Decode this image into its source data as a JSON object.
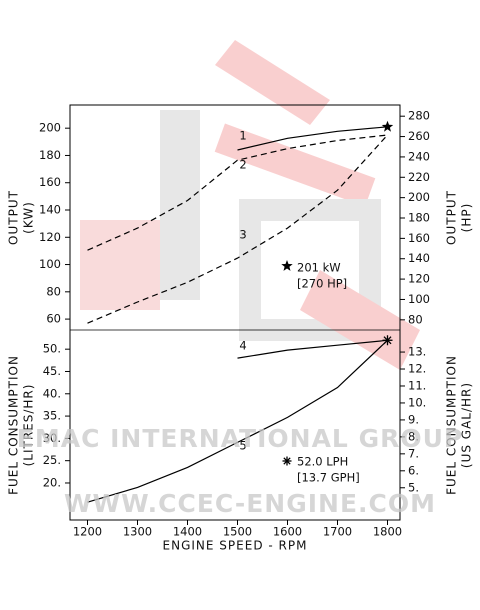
{
  "chart_data": [
    {
      "type": "line",
      "y_label": [
        "OUTPUT",
        "(KW)"
      ],
      "y2_label": [
        "OUTPUT",
        "(HP)"
      ],
      "x": [
        1200,
        1300,
        1400,
        1500,
        1600,
        1700,
        1800
      ],
      "xlim": [
        1165,
        1825
      ],
      "ylim": [
        52,
        217
      ],
      "yticks": [
        60,
        80,
        100,
        120,
        140,
        160,
        180,
        200
      ],
      "y2lim": [
        70,
        291
      ],
      "y2ticks": [
        80,
        100,
        120,
        140,
        160,
        180,
        200,
        220,
        240,
        260,
        280
      ],
      "series": [
        {
          "name": "1",
          "color": "#000000",
          "dash": false,
          "values": [
            null,
            null,
            null,
            184,
            192.6,
            197.7,
            201
          ]
        },
        {
          "name": "2",
          "color": "#000000",
          "dash": true,
          "values": [
            110.5,
            126.7,
            147,
            176.5,
            185,
            191,
            195
          ]
        },
        {
          "name": "3",
          "color": "#000000",
          "dash": true,
          "values": [
            57,
            72.5,
            87,
            104.7,
            126.7,
            154.5,
            195
          ]
        }
      ],
      "annotations": [
        "201 kW",
        "[270 HP]"
      ]
    },
    {
      "type": "line",
      "y_label": [
        "FUEL CONSUMPTION",
        "(LITRES/HR)"
      ],
      "y2_label": [
        "FUEL CONSUMPTION",
        "(US GAL/HR)"
      ],
      "x": [
        1200,
        1300,
        1400,
        1500,
        1600,
        1700,
        1800
      ],
      "xlim": [
        1165,
        1825
      ],
      "xticks": [
        1200,
        1300,
        1400,
        1500,
        1600,
        1700,
        1800
      ],
      "x_label": "ENGINE SPEED - RPM",
      "ylim": [
        11.7,
        54.3
      ],
      "yticks": [
        {
          "value": 20,
          "label": "20."
        },
        {
          "value": 25,
          "label": "25."
        },
        {
          "value": 30,
          "label": "30."
        },
        {
          "value": 35,
          "label": "35."
        },
        {
          "value": 40,
          "label": "40."
        },
        {
          "value": 45,
          "label": "45."
        },
        {
          "value": 50,
          "label": "50."
        }
      ],
      "y2lim": [
        3.1,
        14.3
      ],
      "y2ticks": [
        {
          "value": 5,
          "label": "5."
        },
        {
          "value": 6,
          "label": "6."
        },
        {
          "value": 7,
          "label": "7."
        },
        {
          "value": 8,
          "label": "8."
        },
        {
          "value": 9,
          "label": "9."
        },
        {
          "value": 10,
          "label": "10."
        },
        {
          "value": 11,
          "label": "11."
        },
        {
          "value": 12,
          "label": "12."
        },
        {
          "value": 13,
          "label": "13."
        }
      ],
      "series": [
        {
          "name": "4",
          "color": "#000000",
          "dash": false,
          "values": [
            null,
            null,
            null,
            48,
            49.8,
            50.9,
            52
          ]
        },
        {
          "name": "5",
          "color": "#000000",
          "dash": false,
          "values": [
            15.7,
            19,
            23.5,
            29.1,
            34.7,
            41.4,
            52
          ]
        }
      ],
      "annotations": [
        "52.0 LPH",
        "[13.7 GPH]"
      ]
    }
  ],
  "watermark": [
    "EMAC INTERNATIONAL GROUP",
    "WWW.CCEC-ENGINE.COM"
  ]
}
